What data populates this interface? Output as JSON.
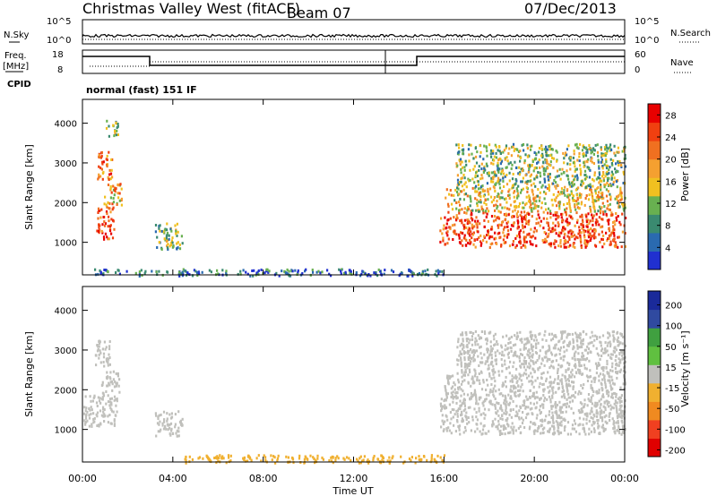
{
  "header": {
    "title": "Christmas Valley West (fitACF)",
    "beam": "Beam 07",
    "date": "07/Dec/2013"
  },
  "status_panels": {
    "nsky_label": "N.Sky",
    "nsky_ticks": [
      "10^5",
      "10^0"
    ],
    "nsearch_label": "N.Search",
    "nsearch_ticks": [
      "10^5",
      "10^0"
    ],
    "freq_label_1": "Freq.",
    "freq_label_2": "[MHz]",
    "freq_ticks": [
      "18",
      "8"
    ],
    "nave_label": "Nave",
    "nave_ticks": [
      "60",
      "0"
    ],
    "cpid_label": "CPID",
    "cpid_value": "normal (fast) 151 IF"
  },
  "colors": {
    "power_scale": [
      "#2030d0",
      "#2a6ab0",
      "#3a8a70",
      "#68b050",
      "#f0c020",
      "#f5a030",
      "#f07020",
      "#f04010",
      "#e80000"
    ],
    "velocity_scale": [
      "#e00000",
      "#f04020",
      "#f08a20",
      "#f0b030",
      "#c0c0bc",
      "#60c040",
      "#40a040",
      "#304aa0",
      "#1a2a9a"
    ],
    "noise_blue": "#2030d0"
  },
  "chart_data": [
    {
      "type": "heatmap",
      "name": "power",
      "xlabel": "",
      "ylabel": "Slant Range [km]",
      "x_ticks": [
        "00:00",
        "04:00",
        "08:00",
        "12:00",
        "16:00",
        "20:00",
        "00:00"
      ],
      "xlim_hours": [
        0,
        24
      ],
      "ylim": [
        180,
        4600
      ],
      "y_ticks": [
        1000,
        2000,
        3000,
        4000
      ],
      "colorbar_label": "Power [dB]",
      "colorbar_ticks": [
        "4",
        "8",
        "12",
        "16",
        "20",
        "24",
        "28"
      ],
      "colorbar_range": [
        0,
        30
      ],
      "regions": [
        {
          "t": [
            0.6,
            1.4
          ],
          "r": [
            1100,
            1900
          ],
          "value": 26
        },
        {
          "t": [
            0.9,
            1.7
          ],
          "r": [
            1900,
            2500
          ],
          "value": 18
        },
        {
          "t": [
            0.6,
            1.3
          ],
          "r": [
            2600,
            3300
          ],
          "value": 22
        },
        {
          "t": [
            1.0,
            1.6
          ],
          "r": [
            3700,
            4100
          ],
          "value": 12
        },
        {
          "t": [
            3.2,
            4.4
          ],
          "r": [
            850,
            1500
          ],
          "value": 10
        },
        {
          "t": [
            15.8,
            24.0
          ],
          "r": [
            900,
            1800
          ],
          "value": 24
        },
        {
          "t": [
            16.0,
            24.0
          ],
          "r": [
            1800,
            2400
          ],
          "value": 16
        },
        {
          "t": [
            16.5,
            24.0
          ],
          "r": [
            2400,
            3500
          ],
          "value": 12
        },
        {
          "t": [
            0.0,
            16.0
          ],
          "r": [
            180,
            350
          ],
          "value": 6
        }
      ]
    },
    {
      "type": "heatmap",
      "name": "velocity",
      "xlabel": "Time UT",
      "ylabel": "Slant Range [km]",
      "x_ticks": [
        "00:00",
        "04:00",
        "08:00",
        "12:00",
        "16:00",
        "20:00",
        "00:00"
      ],
      "xlim_hours": [
        0,
        24
      ],
      "ylim": [
        180,
        4600
      ],
      "y_ticks": [
        1000,
        2000,
        3000,
        4000
      ],
      "colorbar_label": "Velocity [m s⁻¹]",
      "colorbar_ticks": [
        "200",
        "100",
        "50",
        "15",
        "-15",
        "-50",
        "-100",
        "-200"
      ],
      "colorbar_range": [
        -250,
        250
      ],
      "regions": [
        {
          "t": [
            0.0,
            1.5
          ],
          "r": [
            1100,
            1900
          ],
          "value": 0
        },
        {
          "t": [
            0.8,
            1.6
          ],
          "r": [
            1900,
            2500
          ],
          "value": 0
        },
        {
          "t": [
            0.5,
            1.2
          ],
          "r": [
            2600,
            3300
          ],
          "value": 0
        },
        {
          "t": [
            3.2,
            4.4
          ],
          "r": [
            850,
            1500
          ],
          "value": -5
        },
        {
          "t": [
            15.8,
            24.0
          ],
          "r": [
            900,
            1800
          ],
          "value": 0
        },
        {
          "t": [
            16.0,
            24.0
          ],
          "r": [
            1800,
            2400
          ],
          "value": 5
        },
        {
          "t": [
            16.5,
            24.0
          ],
          "r": [
            2400,
            3500
          ],
          "value": 0
        },
        {
          "t": [
            4.5,
            16.0
          ],
          "r": [
            180,
            380
          ],
          "value": -60
        }
      ]
    }
  ]
}
